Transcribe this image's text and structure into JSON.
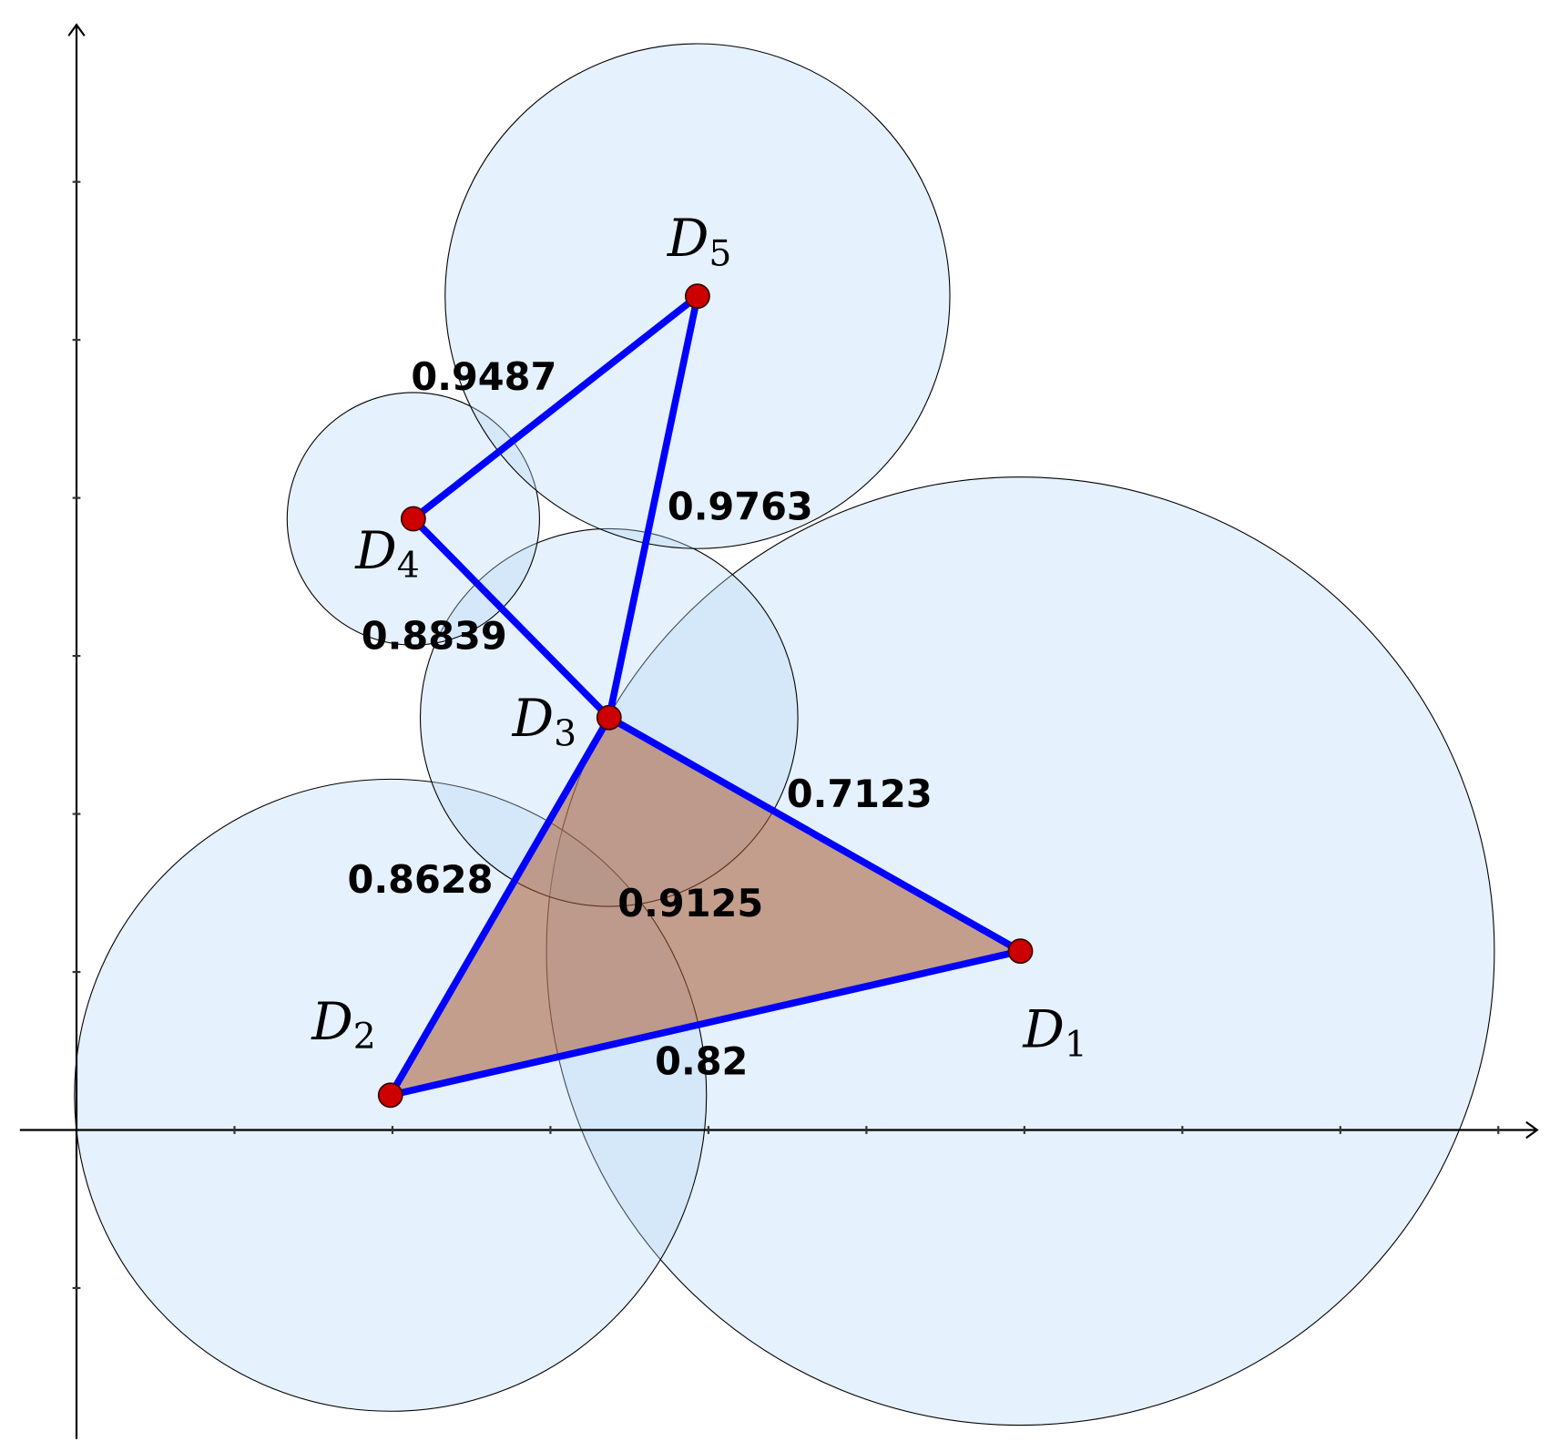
{
  "nodes": [
    {
      "letter": "D",
      "index": "1"
    },
    {
      "letter": "D",
      "index": "2"
    },
    {
      "letter": "D",
      "index": "3"
    },
    {
      "letter": "D",
      "index": "4"
    },
    {
      "letter": "D",
      "index": "5"
    }
  ],
  "edges": [
    {
      "label": "0.82"
    },
    {
      "label": "0.8628"
    },
    {
      "label": "0.7123"
    },
    {
      "label": "0.8839"
    },
    {
      "label": "0.9487"
    },
    {
      "label": "0.9763"
    }
  ],
  "triangle": {
    "label": "0.9125"
  }
}
